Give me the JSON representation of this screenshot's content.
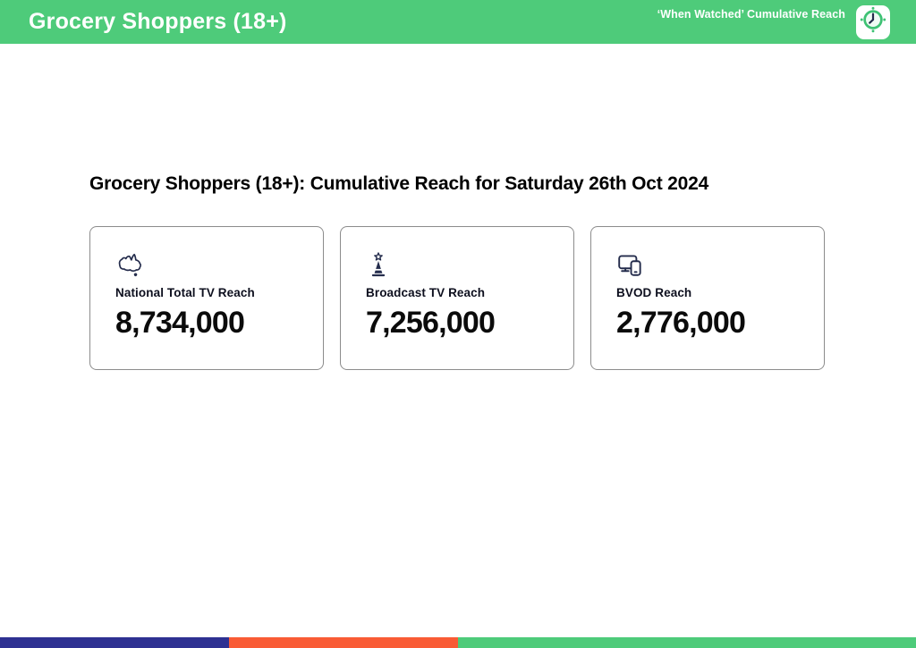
{
  "header": {
    "title": "Grocery Shoppers (18+)",
    "subtitle": "‘When Watched’ Cumulative Reach",
    "bg_color": "#4ECB7A",
    "icon": "clock-icon"
  },
  "main": {
    "heading": "Grocery Shoppers (18+): Cumulative Reach for Saturday 26th Oct 2024",
    "cards": [
      {
        "icon": "australia-map-icon",
        "label": "National Total TV Reach",
        "value": "8,734,000"
      },
      {
        "icon": "broadcast-tower-icon",
        "label": "Broadcast TV Reach",
        "value": "7,256,000"
      },
      {
        "icon": "tv-and-phone-devices-icon",
        "label": "BVOD Reach",
        "value": "2,776,000"
      }
    ]
  },
  "footer": {
    "bar_segments": [
      {
        "name": "navy",
        "color": "#2E3192",
        "width_pct": 25
      },
      {
        "name": "orange",
        "color": "#F95B35",
        "width_pct": 25
      },
      {
        "name": "green",
        "color": "#4ECB7A",
        "width_pct": 50
      }
    ]
  }
}
